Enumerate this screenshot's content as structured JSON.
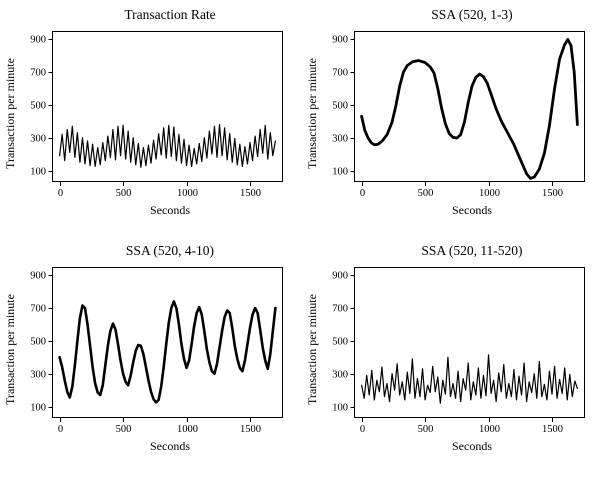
{
  "figure": {
    "background": "#ffffff",
    "line_color": "#000000"
  },
  "chart_data": [
    {
      "type": "line",
      "title": "Transaction Rate",
      "xlabel": "Seconds",
      "ylabel": "Transaction per minute",
      "xticks": [
        0,
        500,
        1000,
        1500
      ],
      "yticks": [
        100,
        300,
        500,
        700,
        900
      ],
      "xlim": [
        -60,
        1760
      ],
      "ylim": [
        30,
        950
      ],
      "grid": false,
      "legend": "none",
      "line_color": "#000000",
      "line_width": 1.2,
      "x_start": 0,
      "x_step": 20,
      "values": [
        190,
        320,
        160,
        350,
        210,
        370,
        180,
        330,
        150,
        300,
        140,
        280,
        130,
        260,
        125,
        240,
        135,
        270,
        160,
        310,
        180,
        350,
        165,
        370,
        190,
        375,
        170,
        340,
        150,
        300,
        135,
        265,
        120,
        240,
        130,
        255,
        145,
        285,
        170,
        325,
        195,
        360,
        175,
        375,
        185,
        365,
        160,
        320,
        145,
        290,
        130,
        255,
        125,
        235,
        140,
        265,
        155,
        300,
        175,
        340,
        200,
        370,
        180,
        380,
        190,
        360,
        165,
        325,
        150,
        295,
        135,
        260,
        125,
        245,
        140,
        270,
        160,
        310,
        185,
        350,
        205,
        375,
        170,
        330,
        190,
        280
      ]
    },
    {
      "type": "line",
      "title": "SSA (520, 1-3)",
      "xlabel": "Seconds",
      "ylabel": "Transaction per minute",
      "xticks": [
        0,
        500,
        1000,
        1500
      ],
      "yticks": [
        100,
        300,
        500,
        700,
        900
      ],
      "xlim": [
        -60,
        1760
      ],
      "ylim": [
        30,
        950
      ],
      "grid": false,
      "legend": "none",
      "line_color": "#000000",
      "line_width": 2.8,
      "points": [
        [
          0,
          430
        ],
        [
          25,
          345
        ],
        [
          50,
          300
        ],
        [
          75,
          270
        ],
        [
          100,
          257
        ],
        [
          130,
          260
        ],
        [
          160,
          278
        ],
        [
          200,
          318
        ],
        [
          240,
          395
        ],
        [
          270,
          495
        ],
        [
          300,
          615
        ],
        [
          330,
          700
        ],
        [
          360,
          740
        ],
        [
          400,
          762
        ],
        [
          450,
          770
        ],
        [
          500,
          758
        ],
        [
          540,
          732
        ],
        [
          570,
          695
        ],
        [
          600,
          600
        ],
        [
          630,
          480
        ],
        [
          660,
          385
        ],
        [
          690,
          325
        ],
        [
          720,
          302
        ],
        [
          750,
          298
        ],
        [
          780,
          318
        ],
        [
          810,
          395
        ],
        [
          840,
          515
        ],
        [
          870,
          615
        ],
        [
          900,
          668
        ],
        [
          930,
          688
        ],
        [
          960,
          672
        ],
        [
          990,
          632
        ],
        [
          1020,
          565
        ],
        [
          1060,
          475
        ],
        [
          1100,
          402
        ],
        [
          1150,
          330
        ],
        [
          1200,
          258
        ],
        [
          1250,
          168
        ],
        [
          1300,
          80
        ],
        [
          1330,
          52
        ],
        [
          1360,
          60
        ],
        [
          1400,
          108
        ],
        [
          1440,
          205
        ],
        [
          1480,
          375
        ],
        [
          1520,
          598
        ],
        [
          1560,
          780
        ],
        [
          1600,
          868
        ],
        [
          1625,
          898
        ],
        [
          1650,
          860
        ],
        [
          1675,
          700
        ],
        [
          1700,
          380
        ]
      ]
    },
    {
      "type": "line",
      "title": "SSA (520, 4-10)",
      "xlabel": "Seconds",
      "ylabel": "Transaction per minute",
      "xticks": [
        0,
        500,
        1000,
        1500
      ],
      "yticks": [
        100,
        300,
        500,
        700,
        900
      ],
      "xlim": [
        -60,
        1760
      ],
      "ylim": [
        30,
        950
      ],
      "grid": false,
      "legend": "none",
      "line_color": "#000000",
      "line_width": 2.6,
      "x_start": 0,
      "x_step": 20,
      "values": [
        400,
        340,
        260,
        190,
        155,
        220,
        350,
        500,
        640,
        715,
        700,
        600,
        470,
        340,
        240,
        185,
        170,
        230,
        350,
        470,
        560,
        605,
        570,
        480,
        380,
        300,
        250,
        230,
        290,
        370,
        440,
        475,
        470,
        420,
        340,
        260,
        190,
        145,
        125,
        140,
        220,
        340,
        480,
        610,
        700,
        740,
        700,
        600,
        480,
        390,
        335,
        380,
        480,
        590,
        670,
        705,
        660,
        560,
        450,
        370,
        315,
        300,
        360,
        460,
        560,
        645,
        685,
        670,
        580,
        470,
        390,
        335,
        315,
        380,
        480,
        580,
        660,
        700,
        670,
        570,
        460,
        380,
        330,
        420,
        560,
        700
      ]
    },
    {
      "type": "line",
      "title": "SSA (520, 11-520)",
      "xlabel": "Seconds",
      "ylabel": "Transaction per minute",
      "xticks": [
        0,
        500,
        1000,
        1500
      ],
      "yticks": [
        100,
        300,
        500,
        700,
        900
      ],
      "xlim": [
        -60,
        1760
      ],
      "ylim": [
        30,
        950
      ],
      "grid": false,
      "legend": "none",
      "line_color": "#000000",
      "line_width": 1.2,
      "x_start": 0,
      "x_step": 20,
      "values": [
        230,
        150,
        290,
        170,
        320,
        140,
        260,
        190,
        340,
        160,
        240,
        130,
        300,
        200,
        360,
        170,
        250,
        140,
        310,
        180,
        390,
        150,
        270,
        160,
        330,
        140,
        230,
        185,
        345,
        190,
        280,
        120,
        260,
        175,
        400,
        160,
        240,
        150,
        315,
        130,
        270,
        200,
        365,
        140,
        250,
        170,
        335,
        150,
        290,
        165,
        415,
        180,
        260,
        130,
        305,
        190,
        355,
        150,
        240,
        160,
        325,
        140,
        285,
        170,
        365,
        130,
        250,
        185,
        300,
        150,
        375,
        160,
        235,
        140,
        315,
        175,
        345,
        150,
        265,
        180,
        335,
        140,
        295,
        160,
        255,
        210
      ]
    }
  ]
}
